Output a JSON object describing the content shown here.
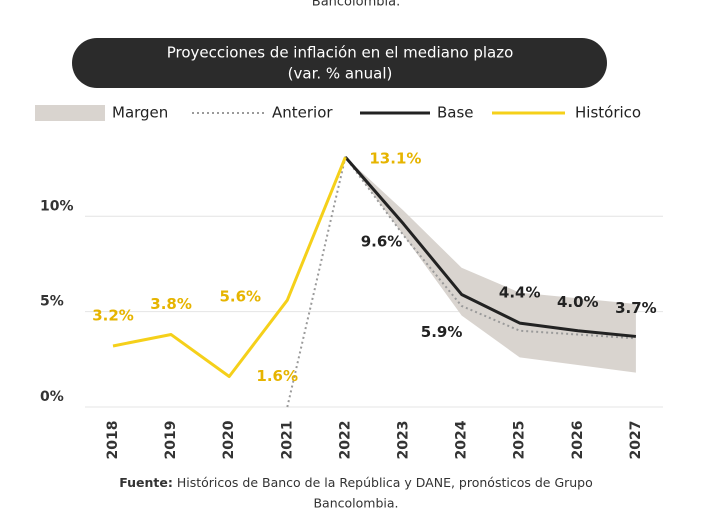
{
  "chart_data": {
    "type": "line",
    "top_note": "Bancolombia.",
    "title": "Proyecciones de inflación en el mediano plazo",
    "subtitle": "(var. % anual)",
    "categories": [
      "2018",
      "2019",
      "2020",
      "2021",
      "2022",
      "2023",
      "2024",
      "2025",
      "2026",
      "2027"
    ],
    "ylim": [
      0,
      14
    ],
    "yticks": [
      {
        "value": 0,
        "label": "0%"
      },
      {
        "value": 5,
        "label": "5%"
      },
      {
        "value": 10,
        "label": "10%"
      }
    ],
    "grid": true,
    "band": {
      "name": "Margen",
      "color": "#d9d4cf",
      "lower": [
        null,
        null,
        null,
        null,
        13.1,
        9.0,
        4.8,
        2.6,
        2.2,
        1.8
      ],
      "upper": [
        null,
        null,
        null,
        null,
        13.1,
        10.3,
        7.3,
        6.0,
        5.7,
        5.4
      ]
    },
    "series": [
      {
        "name": "Anterior",
        "color": "#9a9a9a",
        "dash": "dotted",
        "values": [
          null,
          null,
          null,
          0,
          13.1,
          9.0,
          5.3,
          4.0,
          3.8,
          3.6
        ]
      },
      {
        "name": "Base",
        "color": "#222222",
        "values": [
          null,
          null,
          null,
          null,
          13.1,
          9.6,
          5.9,
          4.4,
          4.0,
          3.7
        ],
        "value_labels": [
          null,
          null,
          null,
          null,
          null,
          "9.6%",
          "5.9%",
          "4.4%",
          "4.0%",
          "3.7%"
        ]
      },
      {
        "name": "Histórico",
        "color": "#f5d01a",
        "label_color": "#e6b400",
        "values": [
          3.2,
          3.8,
          1.6,
          5.6,
          13.1,
          null,
          null,
          null,
          null,
          null
        ],
        "value_labels": [
          "3.2%",
          "3.8%",
          "1.6%",
          "5.6%",
          "13.1%",
          null,
          null,
          null,
          null,
          null
        ]
      }
    ],
    "source_label": "Fuente:",
    "source": "Históricos de Banco de la República y DANE, pronósticos de Grupo",
    "source_line2": "Bancolombia."
  }
}
